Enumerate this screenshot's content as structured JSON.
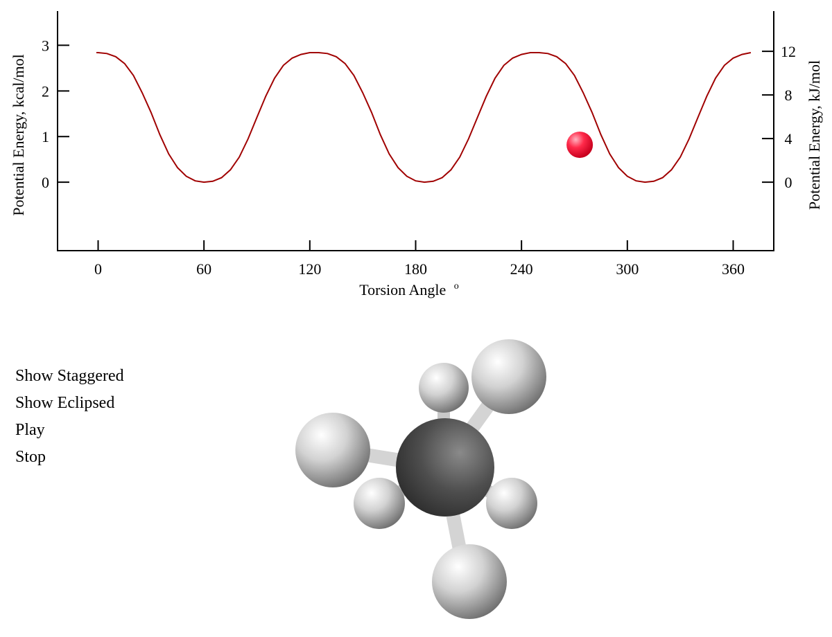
{
  "chart_data": {
    "type": "line",
    "xlabel": "Torsion Angle",
    "xlabel_superscript": "o",
    "ylabel_left": "Potential Energy, kcal/mol",
    "ylabel_right": "Potential Energy, kJ/mol",
    "x_ticks": [
      0,
      60,
      120,
      180,
      240,
      300,
      360
    ],
    "y_ticks_left": [
      0,
      1,
      2,
      3
    ],
    "y_ticks_right": [
      0,
      4,
      8,
      12
    ],
    "xlim": [
      -23,
      383
    ],
    "ylim_left": [
      -1.5,
      3.75
    ],
    "ylim_right": [
      -6.28,
      15.69
    ],
    "grid": false,
    "series": [
      {
        "x": [
          -1,
          0,
          5,
          10,
          15,
          20,
          25,
          30,
          35,
          40,
          45,
          50,
          55,
          60,
          65,
          70,
          75,
          80,
          85,
          90,
          95,
          100,
          105,
          110,
          115,
          120,
          125,
          130,
          135,
          140,
          145,
          150,
          155,
          160,
          165,
          170,
          175,
          180,
          185,
          190,
          195,
          200,
          205,
          210,
          215,
          220,
          225,
          230,
          235,
          240,
          245,
          250,
          255,
          260,
          265,
          270,
          275,
          280,
          285,
          290,
          295,
          300,
          305,
          310,
          315,
          320,
          325,
          330,
          335,
          340,
          345,
          350,
          355,
          360,
          365,
          370
        ],
        "y": [
          2.84,
          2.84,
          2.82,
          2.75,
          2.6,
          2.34,
          1.96,
          1.53,
          1.04,
          0.62,
          0.32,
          0.13,
          0.03,
          0.0,
          0.02,
          0.1,
          0.27,
          0.55,
          0.95,
          1.42,
          1.88,
          2.28,
          2.56,
          2.72,
          2.8,
          2.84,
          2.84,
          2.82,
          2.75,
          2.6,
          2.34,
          1.96,
          1.53,
          1.04,
          0.62,
          0.32,
          0.13,
          0.03,
          0.0,
          0.02,
          0.1,
          0.27,
          0.55,
          0.95,
          1.42,
          1.88,
          2.28,
          2.56,
          2.72,
          2.8,
          2.84,
          2.84,
          2.82,
          2.75,
          2.6,
          2.34,
          1.96,
          1.53,
          1.04,
          0.62,
          0.32,
          0.13,
          0.03,
          0.0,
          0.02,
          0.1,
          0.27,
          0.55,
          0.95,
          1.42,
          1.88,
          2.28,
          2.56,
          2.72,
          2.8,
          2.84
        ],
        "color": "#a00000"
      }
    ],
    "marker": {
      "x": 273,
      "y": 0.82,
      "color": "#ff2040"
    }
  },
  "controls": {
    "show_staggered": "Show Staggered",
    "show_eclipsed": "Show Eclipsed",
    "play": "Play",
    "stop": "Stop"
  },
  "colors": {
    "curve": "#a00000",
    "marker": "#ff2040",
    "carbon_atom": "#4a4a4a",
    "hydrogen_atom": "#d9d9d9",
    "bond": "#c8c8c8"
  }
}
